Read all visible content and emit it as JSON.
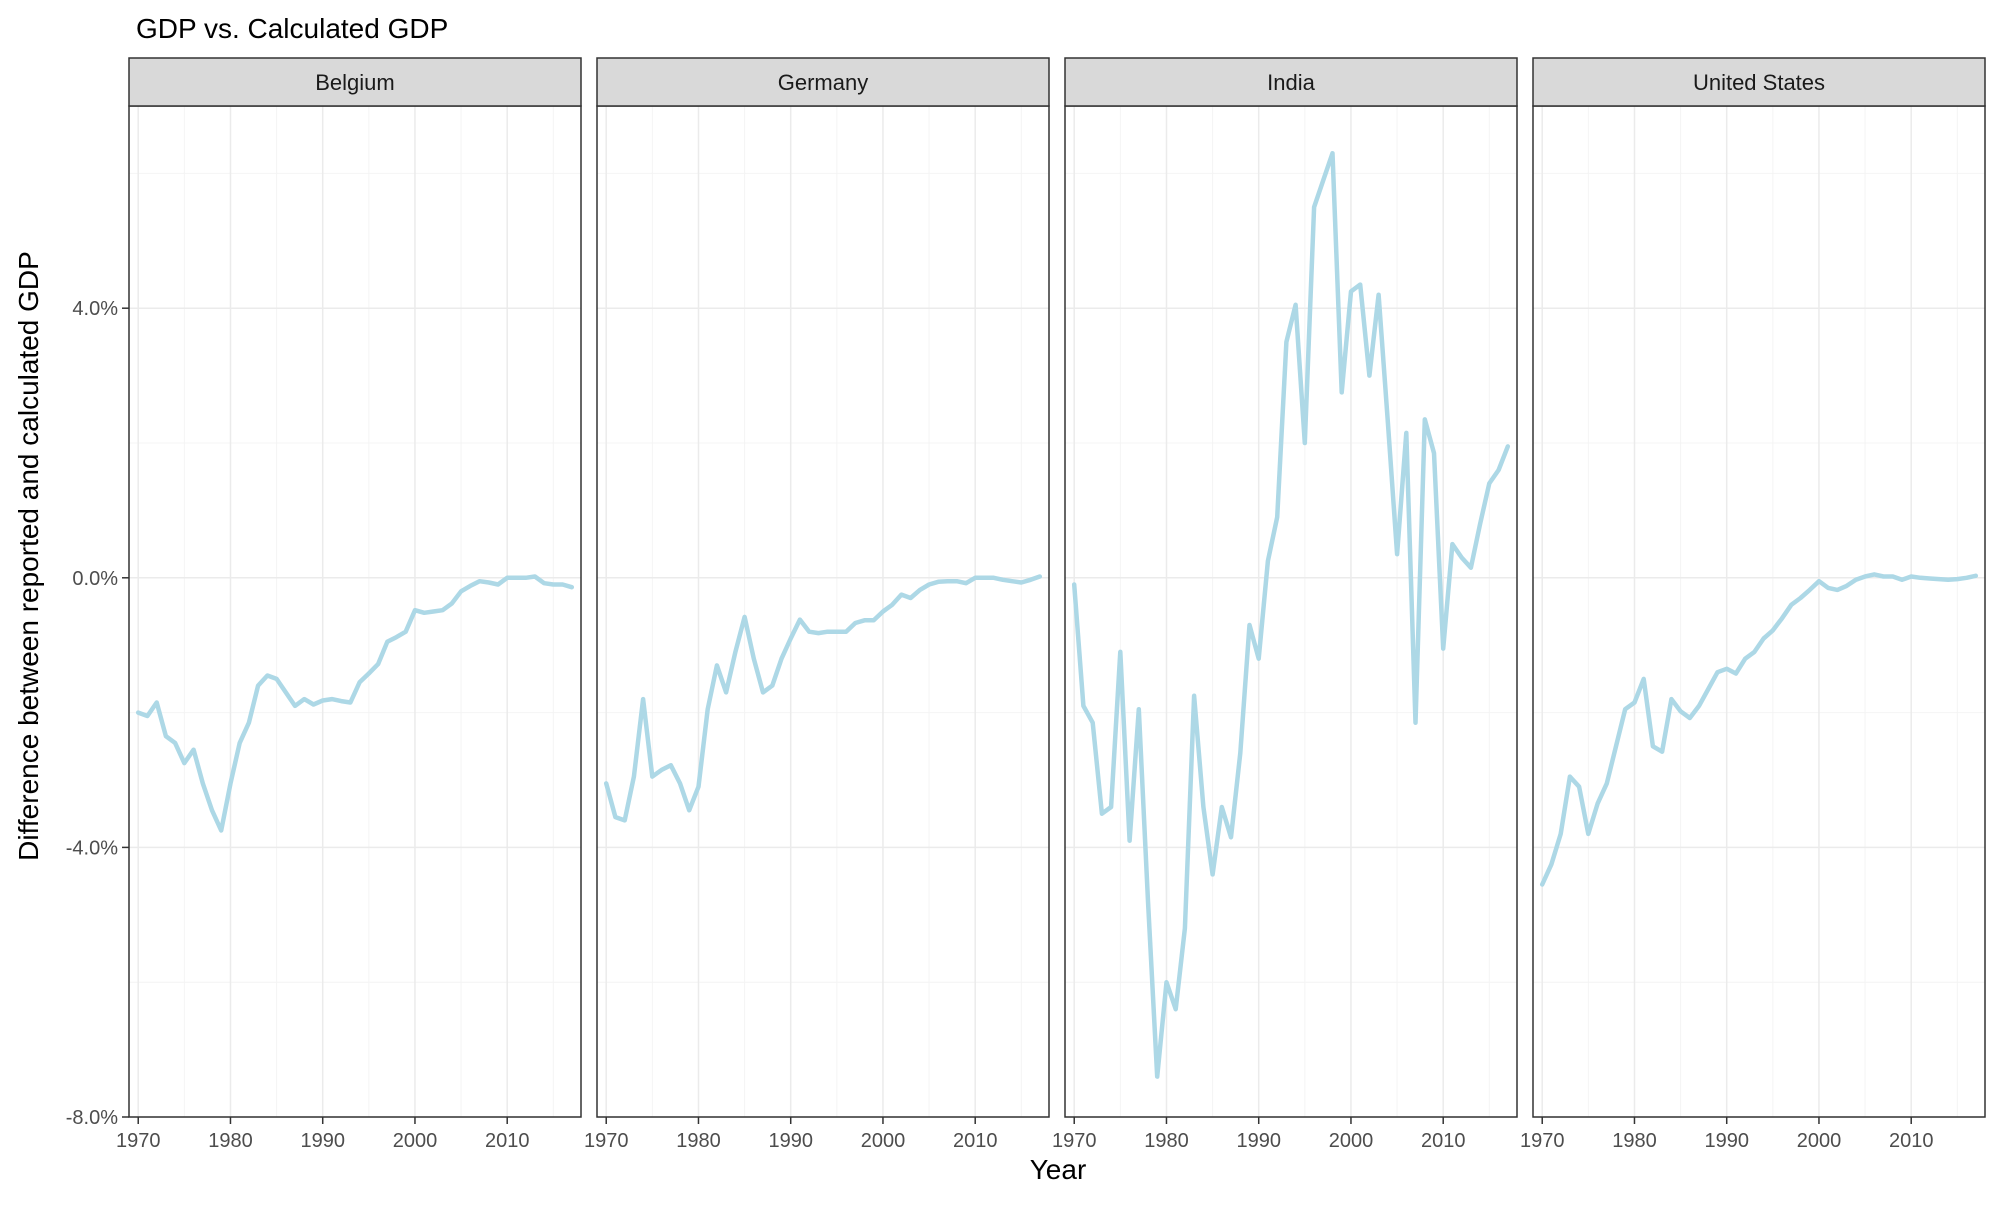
{
  "chart_data": {
    "type": "line",
    "title": "GDP vs. Calculated GDP",
    "xlabel": "Year",
    "ylabel": "Difference between reported and calculated GDP",
    "xlim": [
      1969,
      2018
    ],
    "ylim": [
      -8.0,
      7.0
    ],
    "x_ticks": [
      1970,
      1980,
      1990,
      2000,
      2010
    ],
    "x_tick_labels": [
      "1970",
      "1980",
      "1990",
      "2000",
      "2010"
    ],
    "y_ticks": [
      -8.0,
      -4.0,
      0.0,
      4.0
    ],
    "y_tick_labels": [
      "-8.0%",
      "-4.0%",
      "0.0%",
      "4.0%"
    ],
    "y_unit": "percent",
    "grid": true,
    "line_color": "#add8e6",
    "facets": [
      {
        "name": "Belgium",
        "x": [
          1970,
          1971,
          1972,
          1973,
          1974,
          1975,
          1976,
          1977,
          1978,
          1979,
          1980,
          1981,
          1982,
          1983,
          1984,
          1985,
          1986,
          1987,
          1988,
          1989,
          1990,
          1991,
          1992,
          1993,
          1994,
          1995,
          1996,
          1997,
          1998,
          1999,
          2000,
          2001,
          2002,
          2003,
          2004,
          2005,
          2006,
          2007,
          2008,
          2009,
          2010,
          2011,
          2012,
          2013,
          2014,
          2015,
          2016,
          2017
        ],
        "y": [
          -2.0,
          -2.05,
          -1.85,
          -2.35,
          -2.45,
          -2.75,
          -2.55,
          -3.05,
          -3.45,
          -3.75,
          -3.05,
          -2.45,
          -2.15,
          -1.6,
          -1.45,
          -1.5,
          -1.7,
          -1.9,
          -1.8,
          -1.88,
          -1.82,
          -1.8,
          -1.83,
          -1.85,
          -1.55,
          -1.42,
          -1.28,
          -0.95,
          -0.88,
          -0.8,
          -0.48,
          -0.52,
          -0.5,
          -0.48,
          -0.38,
          -0.2,
          -0.12,
          -0.05,
          -0.07,
          -0.1,
          0.0,
          0.0,
          0.0,
          0.02,
          -0.08,
          -0.1,
          -0.1,
          -0.14
        ]
      },
      {
        "name": "Germany",
        "x": [
          1970,
          1971,
          1972,
          1973,
          1974,
          1975,
          1976,
          1977,
          1978,
          1979,
          1980,
          1981,
          1982,
          1983,
          1984,
          1985,
          1986,
          1987,
          1988,
          1989,
          1990,
          1991,
          1992,
          1993,
          1994,
          1995,
          1996,
          1997,
          1998,
          1999,
          2000,
          2001,
          2002,
          2003,
          2004,
          2005,
          2006,
          2007,
          2008,
          2009,
          2010,
          2011,
          2012,
          2013,
          2014,
          2015,
          2016,
          2017
        ],
        "y": [
          -3.05,
          -3.55,
          -3.6,
          -2.95,
          -1.8,
          -2.95,
          -2.85,
          -2.78,
          -3.05,
          -3.45,
          -3.1,
          -1.95,
          -1.3,
          -1.7,
          -1.1,
          -0.58,
          -1.2,
          -1.7,
          -1.6,
          -1.2,
          -0.9,
          -0.62,
          -0.8,
          -0.82,
          -0.8,
          -0.8,
          -0.8,
          -0.67,
          -0.63,
          -0.63,
          -0.5,
          -0.4,
          -0.25,
          -0.3,
          -0.18,
          -0.1,
          -0.06,
          -0.05,
          -0.05,
          -0.08,
          0.0,
          0.0,
          0.0,
          -0.03,
          -0.05,
          -0.07,
          -0.03,
          0.02
        ]
      },
      {
        "name": "India",
        "x": [
          1970,
          1971,
          1972,
          1973,
          1974,
          1975,
          1976,
          1977,
          1978,
          1979,
          1980,
          1981,
          1982,
          1983,
          1984,
          1985,
          1986,
          1987,
          1988,
          1989,
          1990,
          1991,
          1992,
          1993,
          1994,
          1995,
          1996,
          1997,
          1998,
          1999,
          2000,
          2001,
          2002,
          2003,
          2004,
          2005,
          2006,
          2007,
          2008,
          2009,
          2010,
          2011,
          2012,
          2013,
          2014,
          2015,
          2016,
          2017
        ],
        "y": [
          -0.1,
          -1.9,
          -2.15,
          -3.5,
          -3.4,
          -1.1,
          -3.9,
          -1.95,
          -4.8,
          -7.4,
          -6.0,
          -6.4,
          -5.2,
          -1.75,
          -3.4,
          -4.4,
          -3.4,
          -3.85,
          -2.6,
          -0.7,
          -1.2,
          0.25,
          0.9,
          3.5,
          4.05,
          2.0,
          5.5,
          5.9,
          6.3,
          2.75,
          4.25,
          4.35,
          3.0,
          4.2,
          2.3,
          0.35,
          2.15,
          -2.15,
          2.35,
          1.85,
          -1.05,
          0.5,
          0.3,
          0.15,
          0.8,
          1.4,
          1.6,
          1.95
        ]
      },
      {
        "name": "United States",
        "x": [
          1970,
          1971,
          1972,
          1973,
          1974,
          1975,
          1976,
          1977,
          1978,
          1979,
          1980,
          1981,
          1982,
          1983,
          1984,
          1985,
          1986,
          1987,
          1988,
          1989,
          1990,
          1991,
          1992,
          1993,
          1994,
          1995,
          1996,
          1997,
          1998,
          1999,
          2000,
          2001,
          2002,
          2003,
          2004,
          2005,
          2006,
          2007,
          2008,
          2009,
          2010,
          2011,
          2012,
          2013,
          2014,
          2015,
          2016,
          2017
        ],
        "y": [
          -4.55,
          -4.25,
          -3.8,
          -2.95,
          -3.1,
          -3.8,
          -3.35,
          -3.05,
          -2.5,
          -1.95,
          -1.85,
          -1.5,
          -2.5,
          -2.58,
          -1.8,
          -1.98,
          -2.08,
          -1.9,
          -1.65,
          -1.4,
          -1.35,
          -1.42,
          -1.2,
          -1.1,
          -0.9,
          -0.78,
          -0.6,
          -0.4,
          -0.3,
          -0.18,
          -0.05,
          -0.15,
          -0.18,
          -0.12,
          -0.03,
          0.02,
          0.05,
          0.02,
          0.02,
          -0.03,
          0.02,
          0.0,
          -0.01,
          -0.02,
          -0.03,
          -0.02,
          0.0,
          0.03
        ]
      }
    ]
  }
}
